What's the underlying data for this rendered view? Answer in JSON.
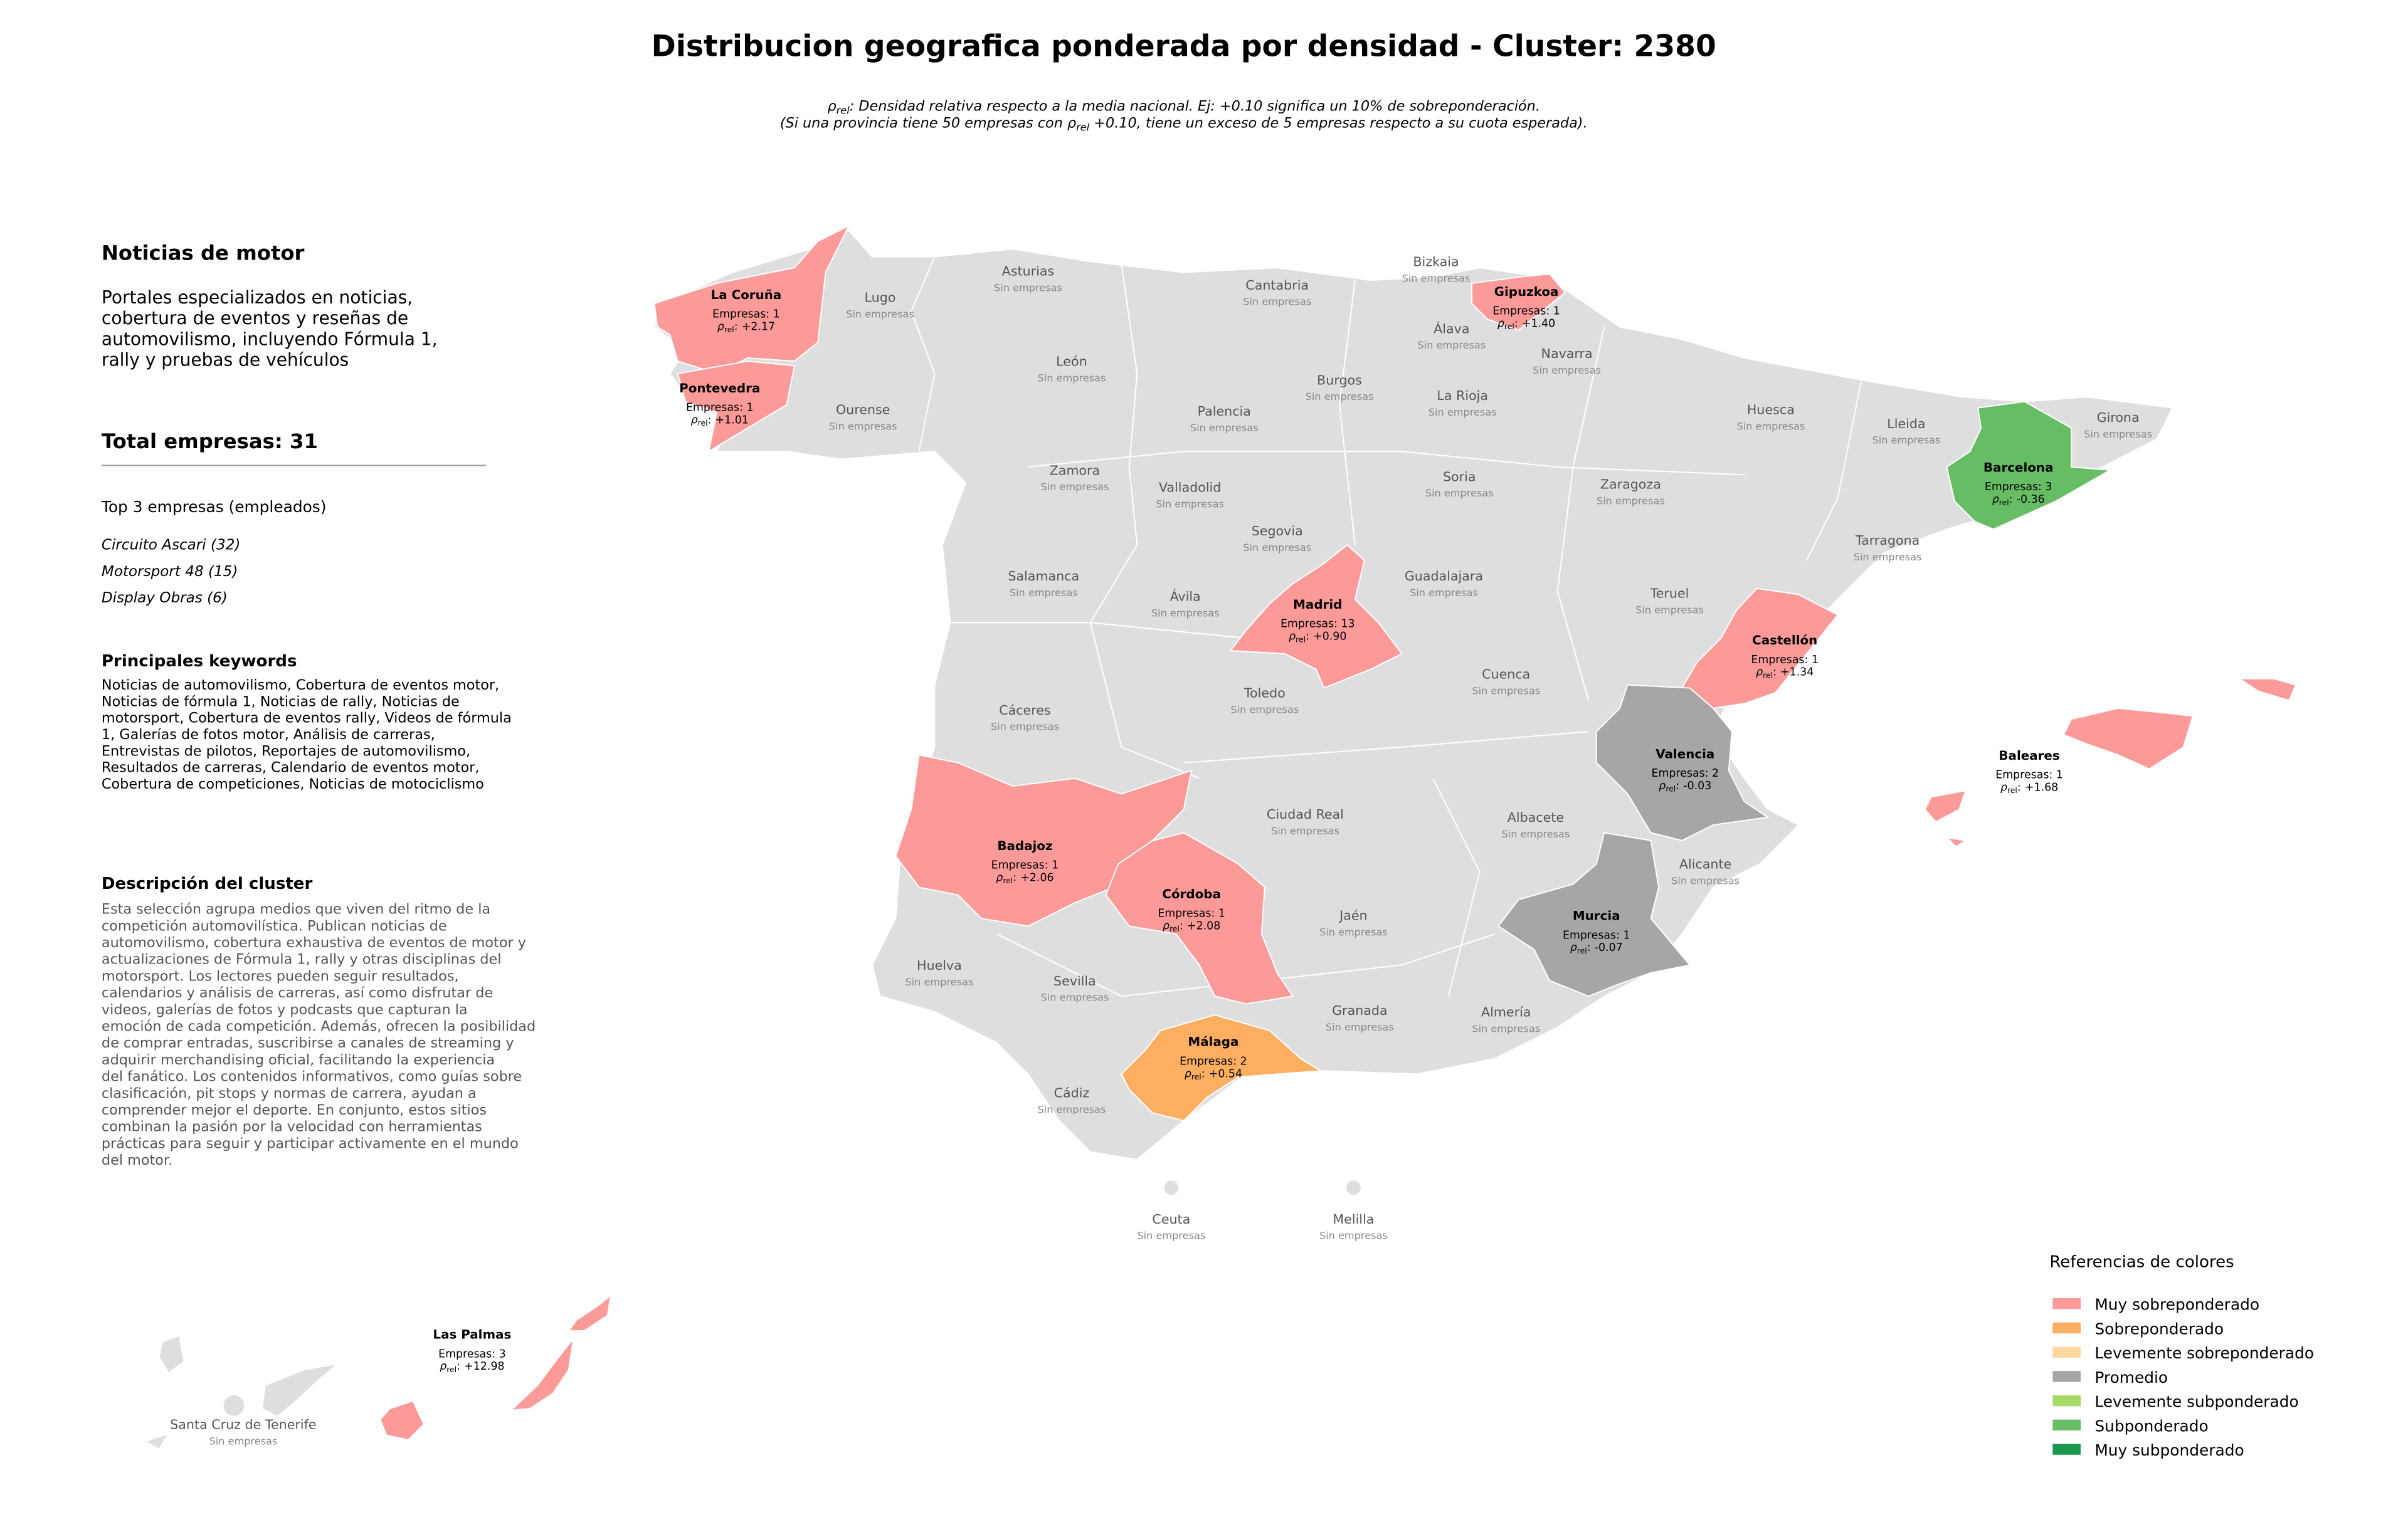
{
  "title": "Distribucion geografica ponderada por densidad - Cluster: 2380",
  "subtitle": {
    "l1_symbol": "ρ",
    "l1_sub": "rel",
    "l1_text": ": Densidad relativa respecto a la media nacional. Ej: +0.10 significa un 10% de sobreponderación.",
    "l2_a": "(Si una provincia tiene 50 empresas con ",
    "l2_symbol": "ρ",
    "l2_sub": "rel",
    "l2_b": " +0.10, tiene un exceso de 5 empresas respecto a su cuota esperada)."
  },
  "panel": {
    "heading": "Noticias de motor",
    "summary": [
      "Portales especializados en noticias,",
      "cobertura de eventos y reseñas de",
      "automovilismo, incluyendo Fórmula 1,",
      "rally y pruebas de vehículos"
    ],
    "total": "Total empresas: 31",
    "top_title": "Top 3 empresas (empleados)",
    "top": [
      "Circuito Ascari (32)",
      "Motorsport 48 (15)",
      "Display Obras (6)"
    ],
    "keywords_title": "Principales keywords",
    "keywords": [
      "Noticias de automovilismo, Cobertura de eventos motor,",
      "Noticias de fórmula 1, Noticias de rally, Noticias de",
      "motorsport, Cobertura de eventos rally, Videos de fórmula",
      "1, Galerías de fotos motor, Análisis de carreras,",
      "Entrevistas de pilotos, Reportajes de automovilismo,",
      "Resultados de carreras, Calendario de eventos motor,",
      "Cobertura de competiciones, Noticias de motociclismo"
    ],
    "description_title": "Descripción del cluster",
    "description": [
      "Esta selección agrupa medios que viven del ritmo de la",
      "competición automovilística. Publican noticias de",
      "automovilismo, cobertura exhaustiva de eventos de motor y",
      "actualizaciones de Fórmula 1, rally y otras disciplinas del",
      "motorsport. Los lectores pueden seguir resultados,",
      "calendarios y análisis de carreras, así como disfrutar de",
      "videos, galerías de fotos y podcasts que capturan la",
      "emoción de cada competición. Además, ofrecen la posibilidad",
      "de comprar entradas, suscribirse a canales de streaming y",
      "adquirir merchandising oficial, facilitando la experiencia",
      "del fanático. Los contenidos informativos, como guías sobre",
      "clasificación, pit stops y normas de carrera, ayudan a",
      "comprender mejor el deporte. En conjunto, estos sitios",
      "combinan la pasión por la velocidad con herramientas",
      "prácticas para seguir y participar activamente en el mundo",
      "del motor."
    ]
  },
  "rho_symbol": "ρ",
  "rho_sub": "rel",
  "rho_sep": ":",
  "provinces": [
    {
      "name": "La Coruña",
      "status": "Empresas: 1",
      "rho": "+2.17",
      "color": "#fb9a99"
    },
    {
      "name": "Lugo",
      "status": "Sin empresas"
    },
    {
      "name": "Asturias",
      "status": "Sin empresas"
    },
    {
      "name": "Cantabria",
      "status": "Sin empresas"
    },
    {
      "name": "Bizkaia",
      "status": "Sin empresas"
    },
    {
      "name": "Gipuzkoa",
      "status": "Empresas: 1",
      "rho": "+1.40",
      "color": "#fb9a99"
    },
    {
      "name": "Álava",
      "status": "Sin empresas"
    },
    {
      "name": "Navarra",
      "status": "Sin empresas"
    },
    {
      "name": "Pontevedra",
      "status": "Empresas: 1",
      "rho": "+1.01",
      "color": "#fb9a99"
    },
    {
      "name": "Ourense",
      "status": "Sin empresas"
    },
    {
      "name": "León",
      "status": "Sin empresas"
    },
    {
      "name": "Palencia",
      "status": "Sin empresas"
    },
    {
      "name": "Burgos",
      "status": "Sin empresas"
    },
    {
      "name": "La Rioja",
      "status": "Sin empresas"
    },
    {
      "name": "Huesca",
      "status": "Sin empresas"
    },
    {
      "name": "Lleida",
      "status": "Sin empresas"
    },
    {
      "name": "Girona",
      "status": "Sin empresas"
    },
    {
      "name": "Barcelona",
      "status": "Empresas: 3",
      "rho": "-0.36",
      "color": "#66bd63"
    },
    {
      "name": "Zamora",
      "status": "Sin empresas"
    },
    {
      "name": "Valladolid",
      "status": "Sin empresas"
    },
    {
      "name": "Soria",
      "status": "Sin empresas"
    },
    {
      "name": "Zaragoza",
      "status": "Sin empresas"
    },
    {
      "name": "Tarragona",
      "status": "Sin empresas"
    },
    {
      "name": "Segovia",
      "status": "Sin empresas"
    },
    {
      "name": "Salamanca",
      "status": "Sin empresas"
    },
    {
      "name": "Ávila",
      "status": "Sin empresas"
    },
    {
      "name": "Madrid",
      "status": "Empresas: 13",
      "rho": "+0.90",
      "color": "#fb9a99"
    },
    {
      "name": "Guadalajara",
      "status": "Sin empresas"
    },
    {
      "name": "Teruel",
      "status": "Sin empresas"
    },
    {
      "name": "Castellón",
      "status": "Empresas: 1",
      "rho": "+1.34",
      "color": "#fb9a99"
    },
    {
      "name": "Cuenca",
      "status": "Sin empresas"
    },
    {
      "name": "Toledo",
      "status": "Sin empresas"
    },
    {
      "name": "Cáceres",
      "status": "Sin empresas"
    },
    {
      "name": "Valencia",
      "status": "Empresas: 2",
      "rho": "-0.03",
      "color": "#a6a6a6"
    },
    {
      "name": "Baleares",
      "status": "Empresas: 1",
      "rho": "+1.68",
      "color": "#fb9a99"
    },
    {
      "name": "Badajoz",
      "status": "Empresas: 1",
      "rho": "+2.06",
      "color": "#fb9a99"
    },
    {
      "name": "Ciudad Real",
      "status": "Sin empresas"
    },
    {
      "name": "Albacete",
      "status": "Sin empresas"
    },
    {
      "name": "Alicante",
      "status": "Sin empresas"
    },
    {
      "name": "Córdoba",
      "status": "Empresas: 1",
      "rho": "+2.08",
      "color": "#fb9a99"
    },
    {
      "name": "Jaén",
      "status": "Sin empresas"
    },
    {
      "name": "Murcia",
      "status": "Empresas: 1",
      "rho": "-0.07",
      "color": "#a6a6a6"
    },
    {
      "name": "Huelva",
      "status": "Sin empresas"
    },
    {
      "name": "Sevilla",
      "status": "Sin empresas"
    },
    {
      "name": "Granada",
      "status": "Sin empresas"
    },
    {
      "name": "Almería",
      "status": "Sin empresas"
    },
    {
      "name": "Málaga",
      "status": "Empresas: 2",
      "rho": "+0.54",
      "color": "#fdae61"
    },
    {
      "name": "Cádiz",
      "status": "Sin empresas"
    },
    {
      "name": "Ceuta",
      "status": "Sin empresas"
    },
    {
      "name": "Melilla",
      "status": "Sin empresas"
    },
    {
      "name": "Santa Cruz de Tenerife",
      "status": "Sin empresas"
    },
    {
      "name": "Las Palmas",
      "status": "Empresas: 3",
      "rho": "+12.98",
      "color": "#fb9a99"
    }
  ],
  "legend": {
    "title": "Referencias de colores",
    "items": [
      {
        "label": "Muy sobreponderado",
        "color": "#fb9a99"
      },
      {
        "label": "Sobreponderado",
        "color": "#fdae61"
      },
      {
        "label": "Levemente sobreponderado",
        "color": "#fed8a0"
      },
      {
        "label": "Promedio",
        "color": "#a6a6a6"
      },
      {
        "label": "Levemente subponderado",
        "color": "#a6d96a"
      },
      {
        "label": "Subponderado",
        "color": "#66bd63"
      },
      {
        "label": "Muy subponderado",
        "color": "#1a9850"
      }
    ]
  }
}
